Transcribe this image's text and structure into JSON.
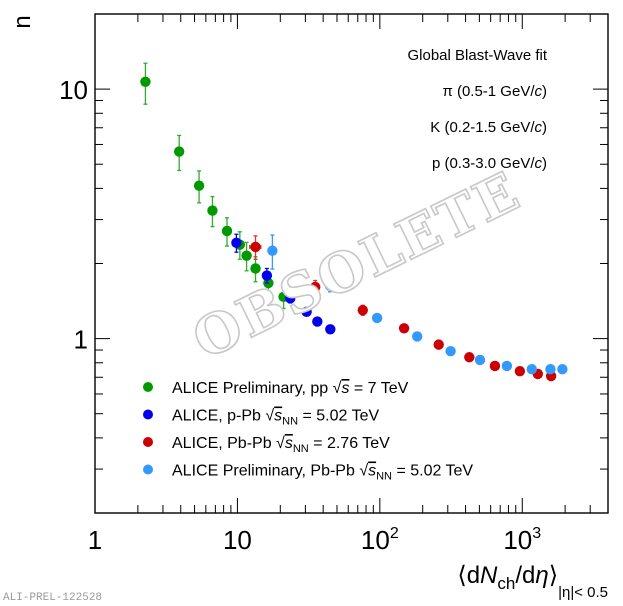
{
  "chart_data": {
    "type": "scatter",
    "title": "",
    "xlabel": "⟨dN_ch/dη⟩_|η|<0.5",
    "xlabel_parts": {
      "open": "⟨d",
      "N": "N",
      "ch": "ch",
      "slash": "/d",
      "eta": "η",
      "close": "⟩",
      "sub": "|η|< 0.5"
    },
    "ylabel": "n",
    "xscale": "log",
    "yscale": "log",
    "xlim": [
      1,
      4000
    ],
    "ylim": [
      0.2,
      20
    ],
    "grid": false,
    "x_ticks": [
      {
        "value": 1,
        "label": "1",
        "sup": ""
      },
      {
        "value": 10,
        "label": "10",
        "sup": ""
      },
      {
        "value": 100,
        "label": "10",
        "sup": "2"
      },
      {
        "value": 1000,
        "label": "10",
        "sup": "3"
      }
    ],
    "y_ticks": [
      {
        "value": 1,
        "label": "1"
      },
      {
        "value": 10,
        "label": "10"
      }
    ],
    "annotations": [
      {
        "text": "Global Blast-Wave fit"
      },
      {
        "text": "π (0.5-1 GeV/",
        "italic": "c",
        "tail": ")"
      },
      {
        "text": "K (0.2-1.5 GeV/",
        "italic": "c",
        "tail": ")"
      },
      {
        "text": "p (0.3-3.0 GeV/",
        "italic": "c",
        "tail": ")"
      }
    ],
    "legend_position": "bottom-left",
    "series": [
      {
        "name": "ALICE Preliminary, pp √s = 7 TeV",
        "legend": {
          "pre": "ALICE Preliminary, pp ",
          "s": "s",
          "sub": "",
          "post": " = 7 TeV"
        },
        "color": "#009900",
        "errcolor": "#33aa33",
        "points": [
          {
            "x": 2.26,
            "y": 10.7,
            "yerr": 2.0
          },
          {
            "x": 3.9,
            "y": 5.62,
            "yerr": 0.9
          },
          {
            "x": 5.38,
            "y": 4.1,
            "yerr": 0.6
          },
          {
            "x": 6.68,
            "y": 3.26,
            "yerr": 0.45
          },
          {
            "x": 8.45,
            "y": 2.7,
            "yerr": 0.35
          },
          {
            "x": 10.4,
            "y": 2.38,
            "yerr": 0.3
          },
          {
            "x": 11.6,
            "y": 2.15,
            "yerr": 0.28
          },
          {
            "x": 13.4,
            "y": 1.91,
            "yerr": 0.22
          },
          {
            "x": 16.5,
            "y": 1.67,
            "yerr": 0.18
          },
          {
            "x": 21.1,
            "y": 1.47,
            "yerr": 0.15
          }
        ]
      },
      {
        "name": "ALICE, p-Pb √sNN = 5.02 TeV",
        "legend": {
          "pre": "ALICE, p-Pb ",
          "s": "s",
          "sub": "NN",
          "post": " = 5.02 TeV"
        },
        "color": "#0000ee",
        "errcolor": "#0000ee",
        "points": [
          {
            "x": 9.84,
            "y": 2.42,
            "yerr": 0.2
          },
          {
            "x": 16.1,
            "y": 1.79,
            "yerr": 0.12
          },
          {
            "x": 23.5,
            "y": 1.45,
            "yerr": 0.06
          },
          {
            "x": 30.6,
            "y": 1.28,
            "yerr": 0.04
          },
          {
            "x": 36.4,
            "y": 1.17,
            "yerr": 0.03
          },
          {
            "x": 44.9,
            "y": 1.09,
            "yerr": 0.02
          }
        ]
      },
      {
        "name": "ALICE, Pb-Pb √sNN = 2.76 TeV",
        "legend": {
          "pre": "ALICE, Pb-Pb ",
          "s": "s",
          "sub": "NN",
          "post": " = 2.76 TeV"
        },
        "color": "#cc0000",
        "errcolor": "#dd3333",
        "points": [
          {
            "x": 13.4,
            "y": 2.33,
            "yerr": 0.25,
            "xerr": 1.2
          },
          {
            "x": 35.2,
            "y": 1.61,
            "yerr": 0.1
          },
          {
            "x": 75.9,
            "y": 1.3,
            "yerr": 0.06
          },
          {
            "x": 148,
            "y": 1.1,
            "yerr": 0.03
          },
          {
            "x": 259,
            "y": 0.946,
            "yerr": 0.02
          },
          {
            "x": 425,
            "y": 0.842,
            "yerr": 0.015
          },
          {
            "x": 643,
            "y": 0.777,
            "yerr": 0.01
          },
          {
            "x": 962,
            "y": 0.74,
            "yerr": 0.01
          },
          {
            "x": 1286,
            "y": 0.722,
            "yerr": 0.01
          },
          {
            "x": 1595,
            "y": 0.708,
            "yerr": 0.01
          }
        ]
      },
      {
        "name": "ALICE Preliminary, Pb-Pb √sNN = 5.02 TeV",
        "legend": {
          "pre": "ALICE Preliminary, Pb-Pb ",
          "s": "s",
          "sub": "NN",
          "post": " = 5.02 TeV"
        },
        "color": "#3399ff",
        "errcolor": "#3399ff",
        "points": [
          {
            "x": 17.6,
            "y": 2.25,
            "yerr": 0.35
          },
          {
            "x": 44.6,
            "y": 1.63,
            "yerr": 0.09
          },
          {
            "x": 95.7,
            "y": 1.21,
            "yerr": 0.02
          },
          {
            "x": 183,
            "y": 1.02,
            "yerr": 0.01
          },
          {
            "x": 314,
            "y": 0.89,
            "yerr": 0.01
          },
          {
            "x": 505,
            "y": 0.821,
            "yerr": 0.01
          },
          {
            "x": 780,
            "y": 0.777,
            "yerr": 0.01
          },
          {
            "x": 1167,
            "y": 0.754,
            "yerr": 0.01
          },
          {
            "x": 1577,
            "y": 0.754,
            "yerr": 0.01
          },
          {
            "x": 1913,
            "y": 0.754,
            "yerr": 0.01
          }
        ]
      }
    ],
    "watermark": "OBSOLETE",
    "preprint_id": "ALI-PREL-122528"
  }
}
